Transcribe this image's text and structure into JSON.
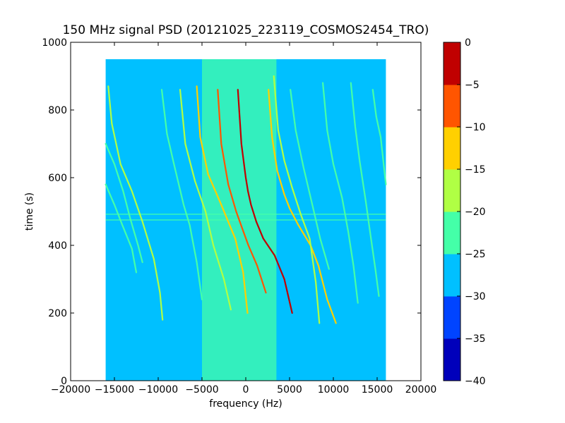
{
  "chart_data": {
    "type": "heatmap",
    "title": "150 MHz signal PSD (20121025_223119_COSMOS2454_TRO)",
    "xlabel": "frequency (Hz)",
    "ylabel": "time (s)",
    "xlim": [
      -20000,
      20000
    ],
    "ylim": [
      0,
      1000
    ],
    "x_ticks": [
      -20000,
      -15000,
      -10000,
      -5000,
      0,
      5000,
      10000,
      15000,
      20000
    ],
    "x_tick_labels": [
      "−20000",
      "−15000",
      "−10000",
      "−5000",
      "0",
      "5000",
      "10000",
      "15000",
      "20000"
    ],
    "y_ticks": [
      0,
      200,
      400,
      600,
      800,
      1000
    ],
    "y_tick_labels": [
      "0",
      "200",
      "400",
      "600",
      "800",
      "1000"
    ],
    "data_extent": {
      "x": [
        -16000,
        16000
      ],
      "y": [
        0,
        950
      ]
    },
    "colorbar": {
      "levels": [
        -40,
        -35,
        -30,
        -25,
        -20,
        -15,
        -10,
        -5,
        0
      ],
      "tick_labels": [
        "−40",
        "−35",
        "−30",
        "−25",
        "−20",
        "−15",
        "−10",
        "−5",
        "0"
      ],
      "colors": [
        "#0000bb",
        "#0044ff",
        "#00c0ff",
        "#44ffa8",
        "#b0ff44",
        "#ffd000",
        "#ff5500",
        "#c00000"
      ]
    },
    "background_level_dB": -27,
    "noise_band_dB": -22,
    "noise_band_x": [
      -5000,
      3500
    ],
    "horizontal_lines_y": [
      475,
      492
    ],
    "tracks": [
      {
        "points": [
          [
            -900,
            860
          ],
          [
            -500,
            700
          ],
          [
            0,
            600
          ],
          [
            250,
            560
          ],
          [
            600,
            520
          ],
          [
            1200,
            470
          ],
          [
            2000,
            420
          ],
          [
            3300,
            370
          ],
          [
            4400,
            300
          ],
          [
            5300,
            200
          ]
        ],
        "level": "red"
      },
      {
        "points": [
          [
            -3200,
            860
          ],
          [
            -2800,
            700
          ],
          [
            -2000,
            580
          ],
          [
            -1100,
            500
          ],
          [
            -400,
            450
          ],
          [
            300,
            400
          ],
          [
            1300,
            340
          ],
          [
            2300,
            260
          ]
        ],
        "level": "orange"
      },
      {
        "points": [
          [
            -5600,
            870
          ],
          [
            -5200,
            720
          ],
          [
            -4300,
            610
          ],
          [
            -2800,
            520
          ],
          [
            -1200,
            420
          ],
          [
            -300,
            320
          ],
          [
            200,
            200
          ]
        ],
        "level": "yellow"
      },
      {
        "points": [
          [
            -7500,
            860
          ],
          [
            -6900,
            700
          ],
          [
            -5800,
            590
          ],
          [
            -4600,
            500
          ],
          [
            -3700,
            400
          ],
          [
            -2500,
            300
          ],
          [
            -1700,
            210
          ]
        ],
        "level": "lightgreen"
      },
      {
        "points": [
          [
            2600,
            860
          ],
          [
            3000,
            720
          ],
          [
            3600,
            620
          ],
          [
            4400,
            550
          ],
          [
            5000,
            510
          ],
          [
            6000,
            460
          ],
          [
            7400,
            400
          ],
          [
            8300,
            340
          ],
          [
            9300,
            240
          ],
          [
            10300,
            170
          ]
        ],
        "level": "yellow"
      },
      {
        "points": [
          [
            3200,
            900
          ],
          [
            3700,
            740
          ],
          [
            4400,
            650
          ],
          [
            5300,
            570
          ],
          [
            6300,
            490
          ],
          [
            7300,
            420
          ],
          [
            8000,
            290
          ],
          [
            8400,
            170
          ]
        ],
        "level": "lightgreen"
      },
      {
        "points": [
          [
            8800,
            880
          ],
          [
            9300,
            740
          ],
          [
            10000,
            640
          ],
          [
            11000,
            540
          ],
          [
            11700,
            440
          ],
          [
            12300,
            340
          ],
          [
            12800,
            230
          ]
        ],
        "level": "green"
      },
      {
        "points": [
          [
            12000,
            880
          ],
          [
            12500,
            750
          ],
          [
            13000,
            650
          ],
          [
            13700,
            530
          ],
          [
            14300,
            420
          ],
          [
            14800,
            330
          ],
          [
            15200,
            250
          ]
        ],
        "level": "green"
      },
      {
        "points": [
          [
            14500,
            860
          ],
          [
            14900,
            780
          ],
          [
            15400,
            720
          ],
          [
            16000,
            580
          ]
        ],
        "level": "green"
      },
      {
        "points": [
          [
            -15700,
            870
          ],
          [
            -15300,
            760
          ],
          [
            -14300,
            640
          ],
          [
            -13000,
            560
          ],
          [
            -11800,
            470
          ],
          [
            -10500,
            360
          ],
          [
            -9800,
            260
          ],
          [
            -9500,
            180
          ]
        ],
        "level": "lightgreen"
      },
      {
        "points": [
          [
            -16000,
            700
          ],
          [
            -15000,
            640
          ],
          [
            -14000,
            560
          ],
          [
            -13200,
            480
          ],
          [
            -12300,
            400
          ],
          [
            -11800,
            350
          ]
        ],
        "level": "green"
      },
      {
        "points": [
          [
            -16000,
            580
          ],
          [
            -15000,
            520
          ],
          [
            -14100,
            460
          ],
          [
            -13000,
            390
          ],
          [
            -12500,
            320
          ]
        ],
        "level": "green"
      },
      {
        "points": [
          [
            -9600,
            860
          ],
          [
            -9000,
            730
          ],
          [
            -8200,
            640
          ],
          [
            -7100,
            520
          ],
          [
            -6400,
            460
          ],
          [
            -5600,
            350
          ],
          [
            -5000,
            240
          ]
        ],
        "level": "green"
      },
      {
        "points": [
          [
            5100,
            860
          ],
          [
            5700,
            740
          ],
          [
            6600,
            630
          ],
          [
            7600,
            520
          ],
          [
            8500,
            420
          ],
          [
            9500,
            330
          ]
        ],
        "level": "green"
      }
    ]
  }
}
